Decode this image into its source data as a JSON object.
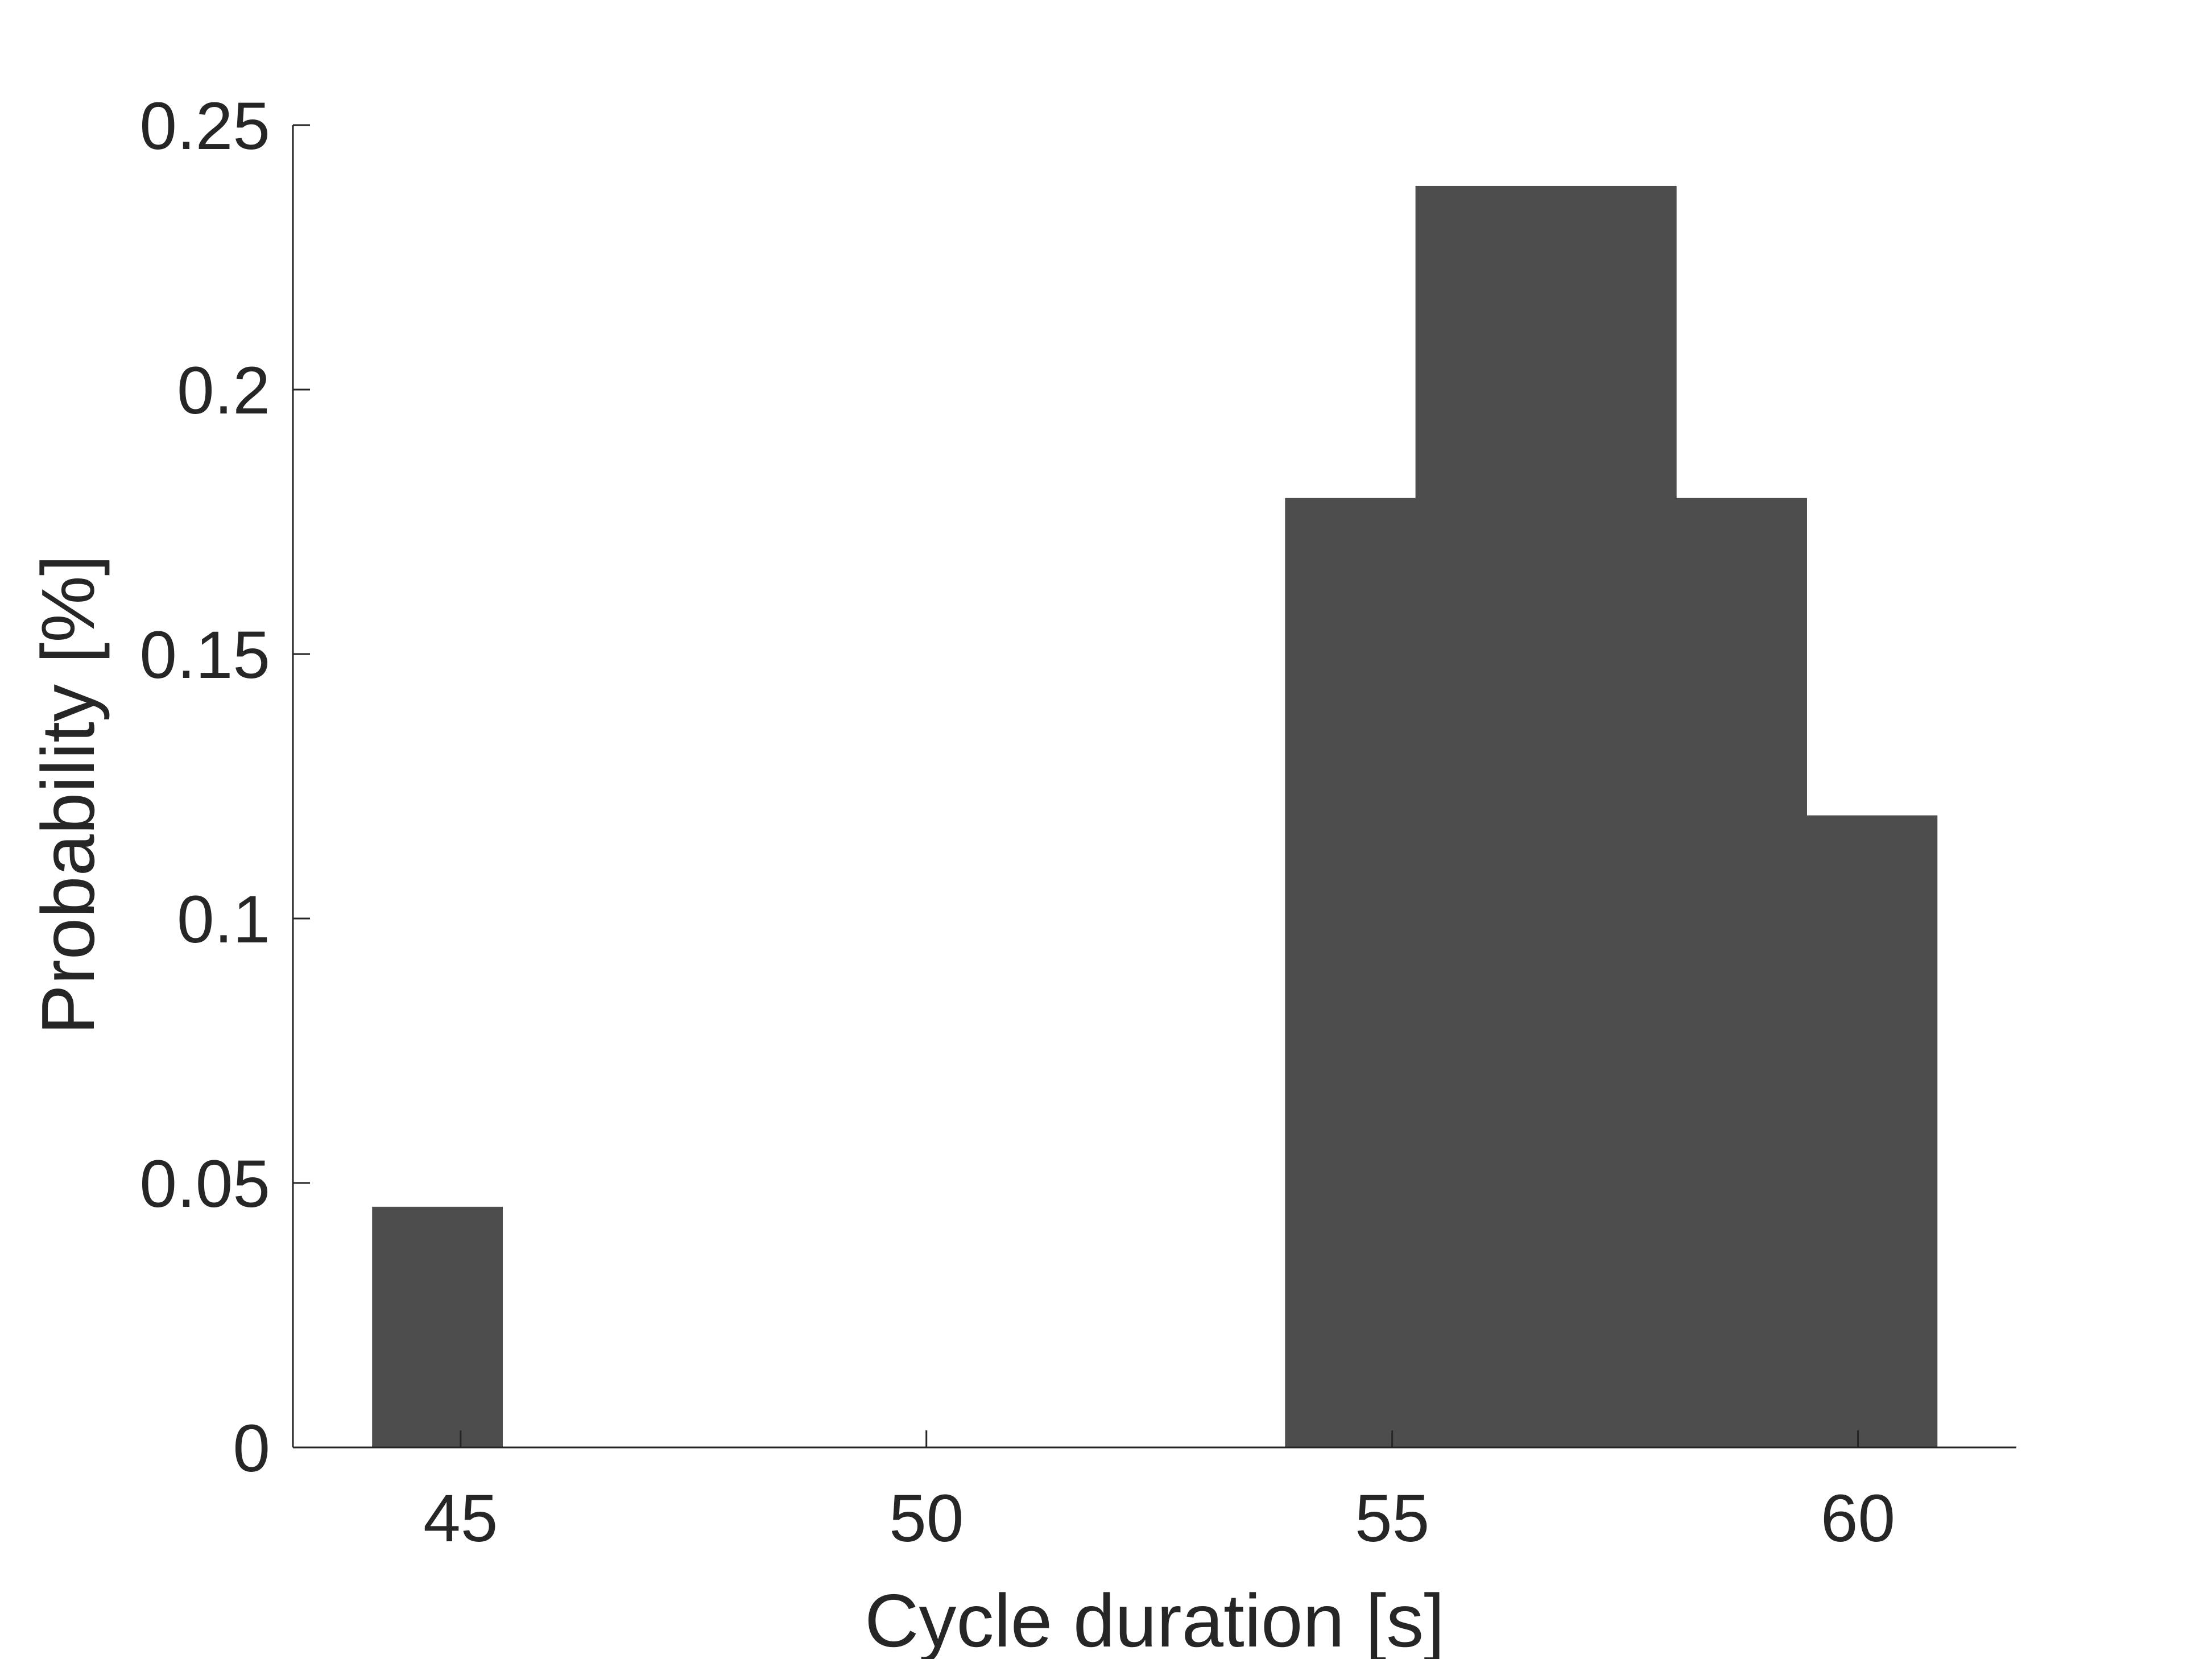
{
  "chart_data": {
    "type": "bar",
    "xlabel": "Cycle duration [s]",
    "ylabel": "Probability [%]",
    "xlim": [
      43.2,
      61.7
    ],
    "ylim": [
      0,
      0.25
    ],
    "x_ticks": [
      45,
      50,
      55,
      60
    ],
    "x_tick_labels": [
      "45",
      "50",
      "55",
      "60"
    ],
    "y_ticks": [
      0,
      0.05,
      0.1,
      0.15,
      0.2,
      0.25
    ],
    "y_tick_labels": [
      "0",
      "0.05",
      "0.1",
      "0.15",
      "0.2",
      "0.25"
    ],
    "bar_color": "#4d4d4d",
    "grid": false,
    "bins": [
      {
        "x_start": 44.05,
        "x_end": 45.45,
        "value": 0.0455
      },
      {
        "x_start": 53.85,
        "x_end": 55.25,
        "value": 0.1795
      },
      {
        "x_start": 55.25,
        "x_end": 56.65,
        "value": 0.2385
      },
      {
        "x_start": 56.65,
        "x_end": 58.05,
        "value": 0.2385
      },
      {
        "x_start": 58.05,
        "x_end": 59.45,
        "value": 0.1795
      },
      {
        "x_start": 59.45,
        "x_end": 60.85,
        "value": 0.1195
      }
    ]
  }
}
